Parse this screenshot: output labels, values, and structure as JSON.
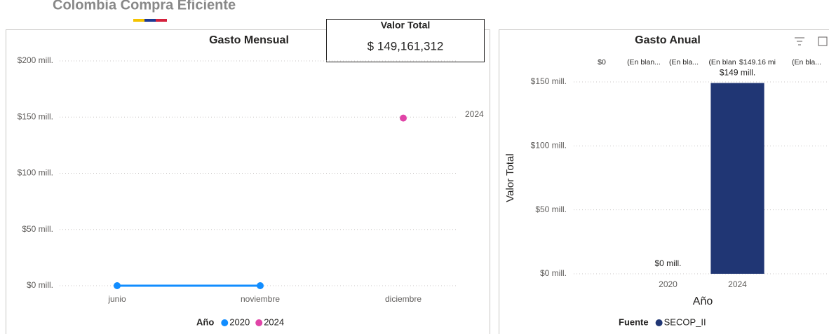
{
  "header": {
    "title": "Colombia Compra Eficiente"
  },
  "card": {
    "title": "Valor Total",
    "value": "$ 149,161,312"
  },
  "chart_data": [
    {
      "type": "line",
      "title": "Gasto Mensual",
      "categories": [
        "junio",
        "noviembre",
        "diciembre"
      ],
      "series": [
        {
          "name": "2020",
          "color": "#118dff",
          "values": [
            0,
            0,
            null
          ]
        },
        {
          "name": "2024",
          "color": "#e044a7",
          "values": [
            null,
            null,
            149.16
          ]
        }
      ],
      "ylim": [
        0,
        200
      ],
      "yticks": [
        {
          "value": 0,
          "label": "$0 mill."
        },
        {
          "value": 50,
          "label": "$50 mill."
        },
        {
          "value": 100,
          "label": "$100 mill."
        },
        {
          "value": 150,
          "label": "$150 mill."
        },
        {
          "value": 200,
          "label": "$200 mill."
        }
      ],
      "grid": true,
      "legend_title": "Año",
      "legend": "bottom"
    },
    {
      "type": "bar",
      "title": "Gasto Anual",
      "categories": [
        "2020",
        "2024"
      ],
      "series": [
        {
          "name": "SECOP_II",
          "color": "#203674",
          "values": [
            0,
            149.16
          ],
          "value_labels": [
            "$0 mill.",
            "$149 mill."
          ]
        }
      ],
      "ylim": [
        0,
        150
      ],
      "yticks": [
        {
          "value": 0,
          "label": "$0 mill."
        },
        {
          "value": 50,
          "label": "$50 mill."
        },
        {
          "value": 100,
          "label": "$100 mill."
        },
        {
          "value": 150,
          "label": "$150 mill."
        }
      ],
      "ylabel": "Valor Total",
      "xlabel": "Año",
      "grid": true,
      "legend_title": "Fuente",
      "legend": "bottom",
      "annotations": [
        "$0",
        "(En blan...",
        "(En bla...",
        "(En blan",
        "$149.16 mi",
        "(En bla..."
      ]
    }
  ]
}
